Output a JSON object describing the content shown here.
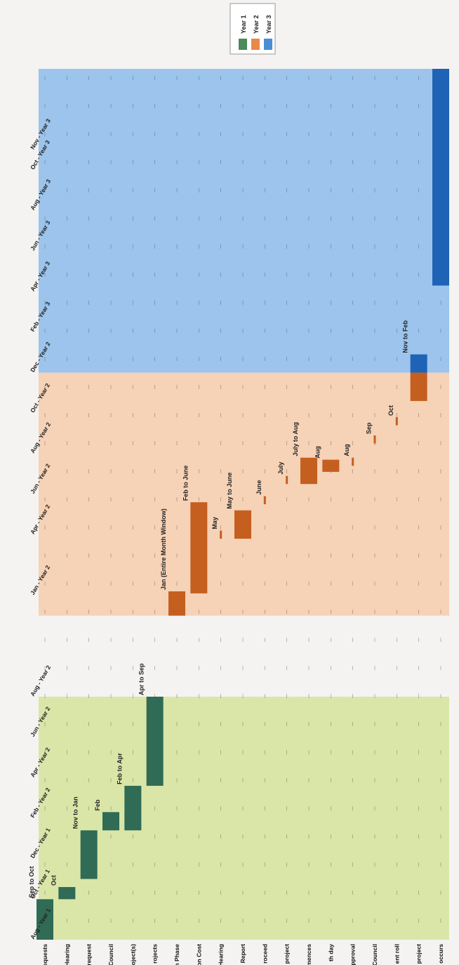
{
  "chart_data": {
    "type": "bar",
    "orientation": "rotated-90-cw",
    "title": "",
    "xlabel": "",
    "ylabel": "",
    "legend": {
      "placement": "top-right",
      "entries": [
        {
          "label": "Year 1",
          "color": "#4e8a5a"
        },
        {
          "label": "Year 2",
          "color": "#e8894a"
        },
        {
          "label": "Year 3",
          "color": "#4a8fd4"
        }
      ]
    },
    "phases": [
      {
        "name": "Year 1",
        "start": 0,
        "end": 12,
        "color": "#d9e6a8"
      },
      {
        "name": "Year 2",
        "start": 16,
        "end": 28,
        "color": "#f6d2b6"
      },
      {
        "name": "Year 3",
        "start": 28,
        "end": 43,
        "color": "#9cc4ec"
      }
    ],
    "ticks": [
      {
        "v": 0,
        "label": "Aug - Year 1"
      },
      {
        "v": 2,
        "label": "Oct - Year 1"
      },
      {
        "v": 4,
        "label": "Dec - Year 1"
      },
      {
        "v": 6,
        "label": "Feb - Year 2"
      },
      {
        "v": 8,
        "label": "Apr - Year 2"
      },
      {
        "v": 10,
        "label": "Jun - Year 2"
      },
      {
        "v": 12,
        "label": "Aug - Year 2"
      },
      {
        "v": 17,
        "label": "Jan - Year 2"
      },
      {
        "v": 20,
        "label": "Apr - Year 2"
      },
      {
        "v": 22,
        "label": "Jun - Year 2"
      },
      {
        "v": 24,
        "label": "Aug - Year 2"
      },
      {
        "v": 26,
        "label": "Oct - Year 2"
      },
      {
        "v": 28,
        "label": "Dec - Year 2"
      },
      {
        "v": 30,
        "label": "Feb - Year 3"
      },
      {
        "v": 32,
        "label": "Apr - Year 3"
      },
      {
        "v": 34,
        "label": "Jun - Year 3"
      },
      {
        "v": 36,
        "label": "Aug - Year 3"
      },
      {
        "v": 38,
        "label": "Oct - Year 3"
      },
      {
        "v": 39,
        "label": "Nov - Year 3"
      }
    ],
    "categories": [
      "requests",
      "Hearing",
      "request",
      "Council",
      "oject(s)",
      "rojects",
      "n Phase",
      "on Cost",
      "Hearing",
      "Report",
      "roceed",
      "project",
      "mences",
      "th day",
      "pproval",
      "Council",
      "ent roll",
      "project",
      "occurs"
    ],
    "bars": [
      {
        "row": 0,
        "start": 0,
        "end": 2,
        "label": "Sep to Oct",
        "color": "#2f6b55"
      },
      {
        "row": 1,
        "start": 2,
        "end": 2.6,
        "label": "Oct",
        "color": "#2f6b55"
      },
      {
        "row": 2,
        "start": 3,
        "end": 5.4,
        "label": "Nov to Jan",
        "color": "#2f6b55"
      },
      {
        "row": 3,
        "start": 5.4,
        "end": 6.3,
        "label": "Feb",
        "color": "#2f6b55"
      },
      {
        "row": 4,
        "start": 5.4,
        "end": 7.6,
        "label": "Feb to Apr",
        "color": "#2f6b55"
      },
      {
        "row": 5,
        "start": 7.6,
        "end": 12,
        "label": "Apr to Sep",
        "color": "#2f6b55"
      },
      {
        "row": 6,
        "start": 16,
        "end": 17.2,
        "label": "Jan (Entire Month Window)",
        "color": "#c45f20"
      },
      {
        "row": 7,
        "start": 17.1,
        "end": 21.6,
        "label": "Feb to June",
        "color": "#c45f20"
      },
      {
        "row": 8,
        "start": 19.8,
        "end": 20.2,
        "label": "May",
        "color": "#c45f20"
      },
      {
        "row": 9,
        "start": 19.8,
        "end": 21.2,
        "label": "May to June",
        "color": "#c45f20"
      },
      {
        "row": 10,
        "start": 21.5,
        "end": 21.9,
        "label": "June",
        "color": "#c45f20"
      },
      {
        "row": 11,
        "start": 22.5,
        "end": 22.9,
        "label": "July",
        "color": "#c45f20"
      },
      {
        "row": 12,
        "start": 22.5,
        "end": 23.8,
        "label": "July to Aug",
        "color": "#c45f20"
      },
      {
        "row": 13,
        "start": 23.1,
        "end": 23.7,
        "label": "Aug",
        "color": "#c45f20"
      },
      {
        "row": 14,
        "start": 23.4,
        "end": 23.8,
        "label": "Aug",
        "color": "#c45f20"
      },
      {
        "row": 15,
        "start": 24.5,
        "end": 24.9,
        "label": "Sep",
        "color": "#c45f20"
      },
      {
        "row": 16,
        "start": 25.4,
        "end": 25.8,
        "label": "Oct",
        "color": "#c45f20"
      },
      {
        "row": 17,
        "start": 26.6,
        "end": 28,
        "label": "",
        "color": "#c45f20"
      },
      {
        "row": 17,
        "start": 28,
        "end": 28.9,
        "label": "Nov to Feb",
        "color": "#1e63b5"
      },
      {
        "row": 18,
        "start": 32.3,
        "end": 43,
        "label": "",
        "color": "#1e63b5"
      }
    ]
  }
}
